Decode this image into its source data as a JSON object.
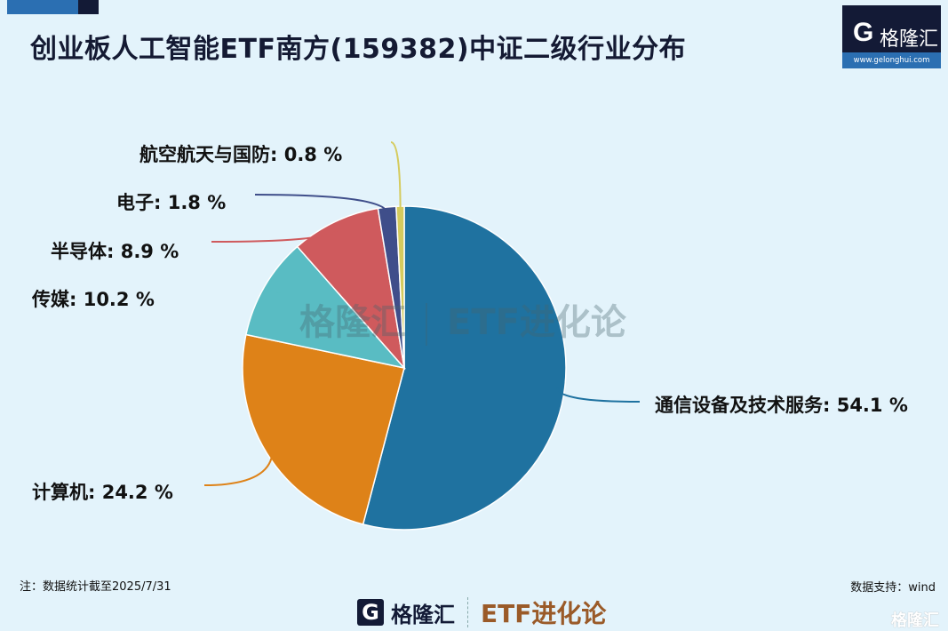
{
  "header": {
    "title": "创业板人工智能ETF南方(159382)中证二级行业分布"
  },
  "logo": {
    "mark": "G",
    "name": "格隆汇",
    "url": "www.gelonghui.com"
  },
  "watermark": {
    "brand": "格隆汇",
    "column": "ETF进化论"
  },
  "footer": {
    "note": "注：数据统计截至2025/7/31",
    "source": "数据支持：wind",
    "brand": "格隆汇",
    "column": "ETF进化论",
    "corner": "格隆汇"
  },
  "chart_data": {
    "type": "pie",
    "start": "12 o'clock, clockwise",
    "slices": [
      {
        "label": "通信设备及技术服务",
        "value": 54.1,
        "text": "通信设备及技术服务: 54.1 %",
        "color": "#1f72a0"
      },
      {
        "label": "计算机",
        "value": 24.2,
        "text": "计算机: 24.2 %",
        "color": "#de8218"
      },
      {
        "label": "传媒",
        "value": 10.2,
        "text": "传媒: 10.2 %",
        "color": "#59bcc3"
      },
      {
        "label": "半导体",
        "value": 8.9,
        "text": "半导体: 8.9 %",
        "color": "#cf5a5d"
      },
      {
        "label": "电子",
        "value": 1.8,
        "text": "电子: 1.8 %",
        "color": "#3f4e8a"
      },
      {
        "label": "航空航天与国防",
        "value": 0.8,
        "text": "航空航天与国防: 0.8 %",
        "color": "#d5cb5e"
      }
    ]
  }
}
